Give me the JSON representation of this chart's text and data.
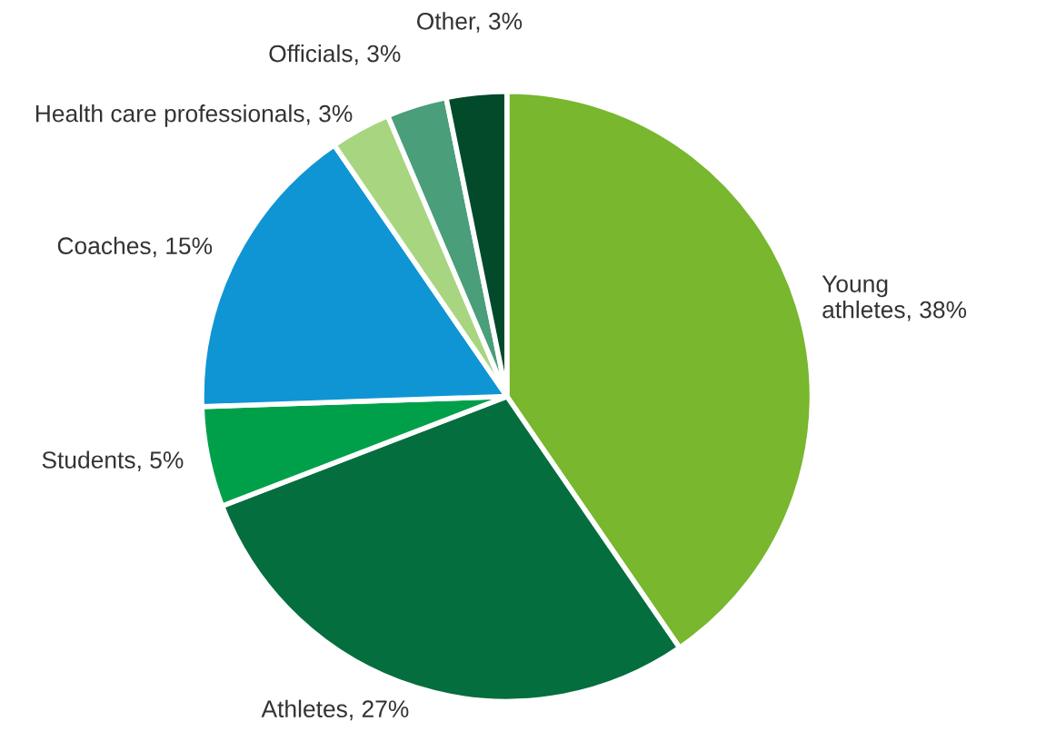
{
  "chart_data": {
    "type": "pie",
    "categories": [
      "Young\nathletes",
      "Athletes",
      "Students",
      "Coaches",
      "Health care professionals",
      "Officials",
      "Other"
    ],
    "values": [
      38,
      27,
      5,
      15,
      3,
      3,
      3
    ],
    "value_labels": [
      "38%",
      "27%",
      "5%",
      "15%",
      "3%",
      "3%",
      "3%"
    ],
    "colors": [
      "#78b72e",
      "#056e3e",
      "#00a04a",
      "#0f95d4",
      "#a8d580",
      "#4a9e7a",
      "#034a2a"
    ]
  }
}
